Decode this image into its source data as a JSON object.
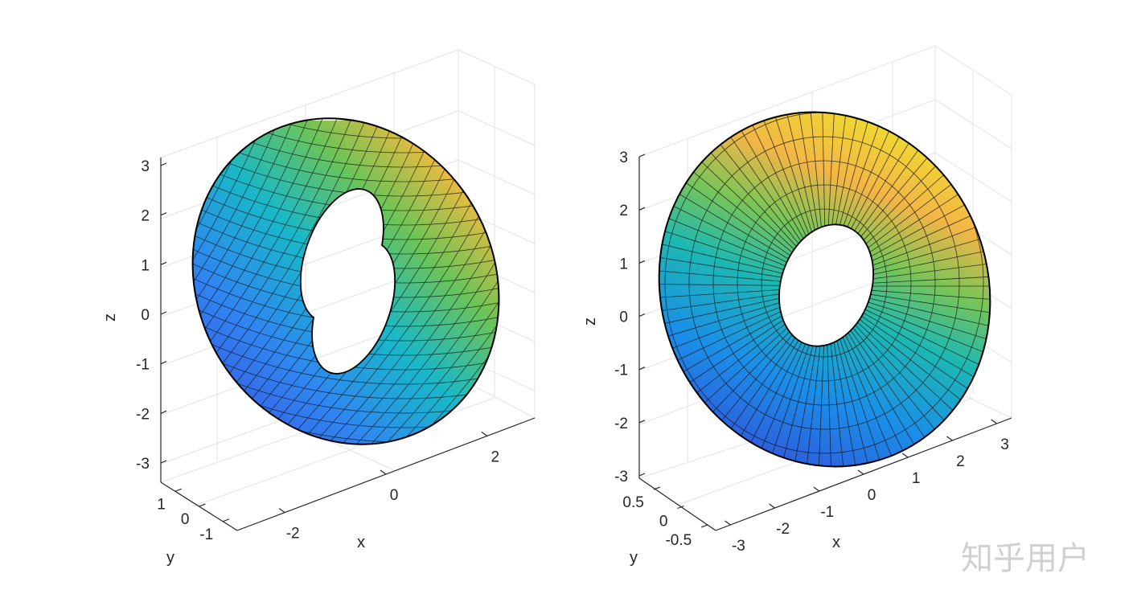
{
  "chart_data": [
    {
      "type": "surface",
      "surface": "torus",
      "mesh": "skewed",
      "colormap": "parula",
      "grid": true,
      "xlabel": "x",
      "ylabel": "y",
      "zlabel": "z",
      "xticks": [
        "-2",
        "0",
        "2"
      ],
      "yticks": [
        "1",
        "0",
        "-1"
      ],
      "zticks": [
        "3",
        "2",
        "1",
        "0",
        "-1",
        "-2",
        "-3"
      ]
    },
    {
      "type": "surface",
      "surface": "torus",
      "mesh": "radial",
      "colormap": "parula",
      "grid": true,
      "xlabel": "x",
      "ylabel": "y",
      "zlabel": "z",
      "xticks": [
        "-3",
        "-2",
        "-1",
        "0",
        "1",
        "2",
        "3"
      ],
      "yticks": [
        "0.5",
        "0",
        "-0.5"
      ],
      "zticks": [
        "3",
        "2",
        "1",
        "0",
        "-1",
        "-2",
        "-3"
      ]
    }
  ],
  "watermark": "知乎用户"
}
